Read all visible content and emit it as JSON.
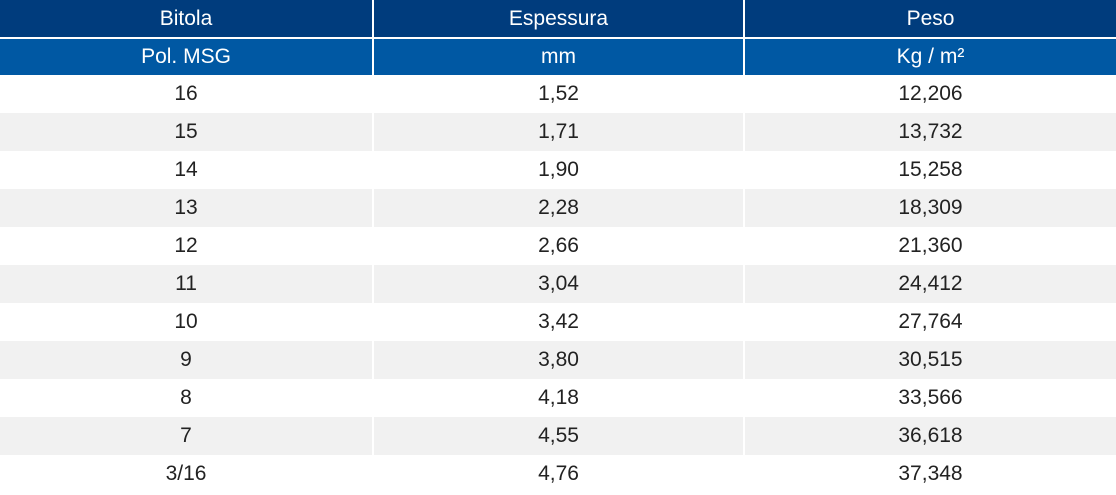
{
  "header": {
    "row1": [
      "Bitola",
      "Espessura",
      "Peso"
    ],
    "row2": [
      "Pol. MSG",
      "mm",
      "Kg / m²"
    ]
  },
  "rows": [
    [
      "16",
      "1,52",
      "12,206"
    ],
    [
      "15",
      "1,71",
      "13,732"
    ],
    [
      "14",
      "1,90",
      "15,258"
    ],
    [
      "13",
      "2,28",
      "18,309"
    ],
    [
      "12",
      "2,66",
      "21,360"
    ],
    [
      "11",
      "3,04",
      "24,412"
    ],
    [
      "10",
      "3,42",
      "27,764"
    ],
    [
      "9",
      "3,80",
      "30,515"
    ],
    [
      "8",
      "4,18",
      "33,566"
    ],
    [
      "7",
      "4,55",
      "36,618"
    ],
    [
      "3/16",
      "4,76",
      "37,348"
    ]
  ],
  "colors": {
    "header_dark": "#003c7d",
    "header_light": "#0058a3",
    "row_alt": "#f1f1f1"
  }
}
